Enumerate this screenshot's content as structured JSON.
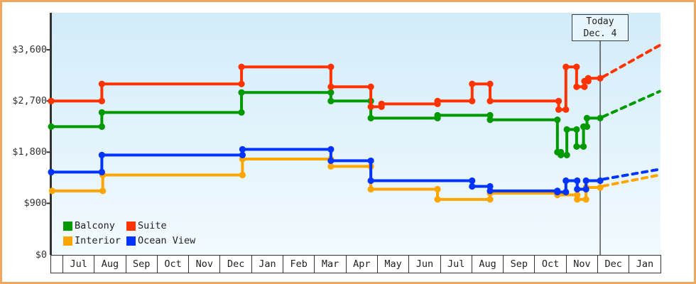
{
  "today_marker": {
    "line1": "Today",
    "line2": "Dec. 4"
  },
  "legend": [
    {
      "label": "Balcony",
      "color": "#009900"
    },
    {
      "label": "Suite",
      "color": "#FF3300"
    },
    {
      "label": "Interior",
      "color": "#FFA500"
    },
    {
      "label": "Ocean View",
      "color": "#0033FF"
    }
  ],
  "colors": {
    "balcony": "#009900",
    "suite": "#FF3300",
    "interior": "#FFA500",
    "ocean_view": "#0033FF",
    "frame_border": "#f0a860",
    "axis": "#333333",
    "today_line": "#444444"
  },
  "chart_data": {
    "type": "line",
    "subtype": "step-price-history",
    "title": "",
    "xlabel": "",
    "ylabel": "",
    "grid": false,
    "legend_position": "bottom-left-inside",
    "y_ticks": [
      {
        "label": "$3,600",
        "value": 3600
      },
      {
        "label": "$2,700",
        "value": 2700
      },
      {
        "label": "$1,800",
        "value": 1800
      },
      {
        "label": "$900",
        "value": 900
      },
      {
        "label": "$0",
        "value": 0
      }
    ],
    "ylim": [
      0,
      4250
    ],
    "x_months": [
      "Jul",
      "Aug",
      "Sep",
      "Oct",
      "Nov",
      "Dec",
      "Jan",
      "Feb",
      "Mar",
      "Apr",
      "May",
      "Jun",
      "Jul",
      "Aug",
      "Sep",
      "Oct",
      "Nov",
      "Dec",
      "Jan"
    ],
    "x_unit_note": "t = months after first Jul 1; prices in USD",
    "today": {
      "t": 17.09,
      "label_line1": "Today",
      "label_line2": "Dec. 4"
    },
    "series": [
      {
        "name": "Balcony",
        "color": "#009900",
        "points": [
          [
            -0.36,
            2249
          ],
          [
            1.25,
            2499
          ],
          [
            5.69,
            2849
          ],
          [
            8.53,
            2699
          ],
          [
            9.8,
            2399
          ],
          [
            11.92,
            2449
          ],
          [
            13.59,
            2369
          ],
          [
            15.73,
            1799
          ],
          [
            15.84,
            1749
          ],
          [
            16.03,
            2199
          ],
          [
            16.34,
            1899
          ],
          [
            16.56,
            2249
          ],
          [
            16.67,
            2399
          ],
          [
            17.09,
            2399
          ]
        ],
        "forecast": [
          [
            17.09,
            2399
          ],
          [
            18.98,
            2869
          ]
        ]
      },
      {
        "name": "Suite",
        "color": "#FF3300",
        "points": [
          [
            -0.36,
            2699
          ],
          [
            1.25,
            2999
          ],
          [
            5.69,
            3299
          ],
          [
            8.53,
            2949
          ],
          [
            9.8,
            2599
          ],
          [
            10.14,
            2649
          ],
          [
            11.92,
            2699
          ],
          [
            13.02,
            2999
          ],
          [
            13.59,
            2699
          ],
          [
            15.77,
            2549
          ],
          [
            16.0,
            3299
          ],
          [
            16.34,
            2949
          ],
          [
            16.59,
            3049
          ],
          [
            16.71,
            3099
          ],
          [
            17.09,
            3099
          ]
        ],
        "forecast": [
          [
            17.09,
            3099
          ],
          [
            18.98,
            3679
          ]
        ]
      },
      {
        "name": "Interior",
        "color": "#FFA500",
        "points": [
          [
            -0.33,
            1119
          ],
          [
            1.28,
            1399
          ],
          [
            5.72,
            1679
          ],
          [
            8.53,
            1549
          ],
          [
            9.8,
            1149
          ],
          [
            11.92,
            969
          ],
          [
            13.59,
            1079
          ],
          [
            15.73,
            1049
          ],
          [
            16.36,
            969
          ],
          [
            16.64,
            1179
          ],
          [
            17.09,
            1179
          ]
        ],
        "forecast": [
          [
            17.09,
            1179
          ],
          [
            18.98,
            1399
          ]
        ]
      },
      {
        "name": "Ocean View",
        "color": "#0033FF",
        "points": [
          [
            -0.36,
            1449
          ],
          [
            1.25,
            1749
          ],
          [
            5.72,
            1849
          ],
          [
            8.53,
            1649
          ],
          [
            9.8,
            1299
          ],
          [
            13.02,
            1199
          ],
          [
            13.59,
            1119
          ],
          [
            15.73,
            1099
          ],
          [
            16.0,
            1299
          ],
          [
            16.36,
            1149
          ],
          [
            16.64,
            1299
          ],
          [
            17.09,
            1299
          ]
        ],
        "forecast": [
          [
            17.09,
            1299
          ],
          [
            18.98,
            1499
          ]
        ]
      }
    ]
  }
}
